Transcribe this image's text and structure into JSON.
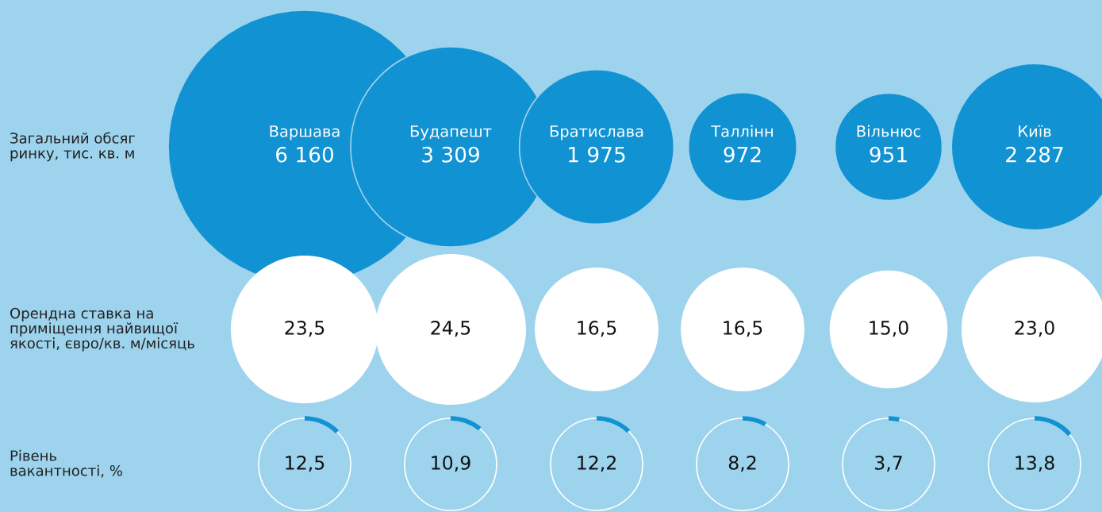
{
  "chart_data": [
    {
      "type": "other",
      "title": "Загальний обсяг\nринку, тис. кв. м",
      "categories": [
        "Варшава",
        "Будапешт",
        "Братислава",
        "Таллінн",
        "Вільнюс",
        "Київ"
      ],
      "values": [
        6160,
        3309,
        1975,
        972,
        951,
        2287
      ],
      "value_labels": [
        "6 160",
        "3 309",
        "1 975",
        "972",
        "951",
        "2 287"
      ],
      "color": "#1192d2"
    },
    {
      "type": "other",
      "title": "Орендна ставка на\nприміщення найвищої\nякості, євро/кв. м/місяць",
      "categories": [
        null,
        null,
        null,
        null,
        null,
        null
      ],
      "values": [
        23.5,
        24.5,
        16.5,
        16.5,
        15.0,
        23.0
      ],
      "value_labels": [
        "23,5",
        "24,5",
        "16,5",
        "16,5",
        "15,0",
        "23,0"
      ],
      "color": "#ffffff"
    },
    {
      "type": "other",
      "title": "Рівень\nвакантності, %",
      "categories": [
        null,
        null,
        null,
        null,
        null,
        null
      ],
      "values": [
        12.5,
        10.9,
        12.2,
        8.2,
        3.7,
        13.8
      ],
      "value_labels": [
        "12,5",
        "10,9",
        "12,2",
        "8,2",
        "3,7",
        "13,8"
      ],
      "color": "#1192d2"
    }
  ]
}
